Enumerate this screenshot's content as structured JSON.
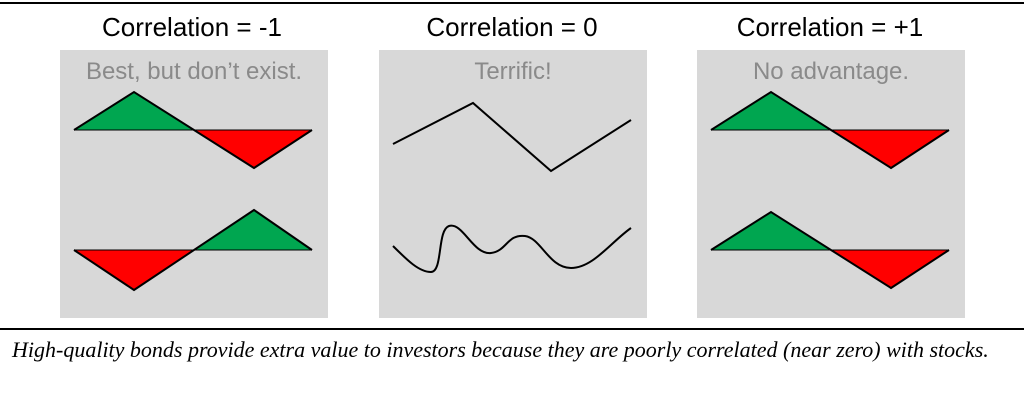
{
  "panels": [
    {
      "title": "Correlation = -1",
      "subtitle": "Best, but don’t exist."
    },
    {
      "title": "Correlation = 0",
      "subtitle": "Terrific!"
    },
    {
      "title": "Correlation = +1",
      "subtitle": "No advantage."
    }
  ],
  "caption": "High-quality bonds provide extra value to investors because they are poorly correlated (near zero) with stocks.",
  "colors": {
    "panel_bg": "#d8d8d8",
    "gain": "#00a650",
    "loss": "#ff0000",
    "line": "#000000",
    "subtitle_text": "#8a8a8a"
  }
}
